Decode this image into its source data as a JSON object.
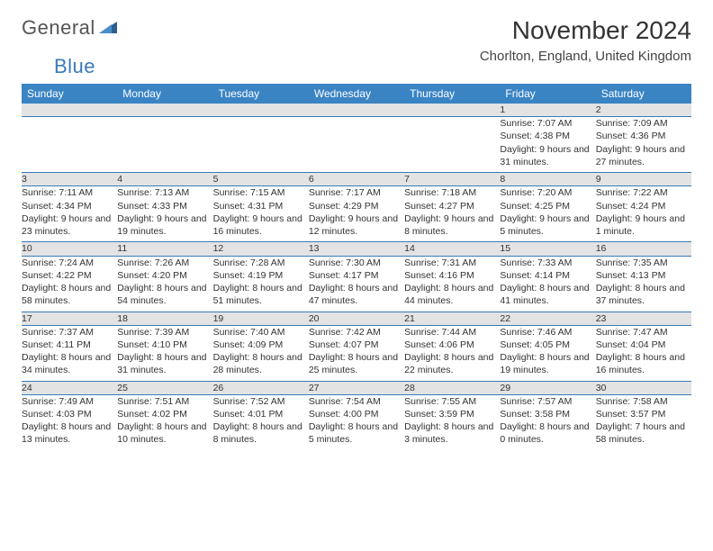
{
  "logo": {
    "text1": "General",
    "text2": "Blue",
    "color1": "#555555",
    "color2": "#3a7ab8"
  },
  "title": "November 2024",
  "location": "Chorlton, England, United Kingdom",
  "header_bg": "#3a84c4",
  "daynum_bg": "#e3e3e3",
  "rule_color": "#3a7ab8",
  "text_color": "#333333",
  "day_headers": [
    "Sunday",
    "Monday",
    "Tuesday",
    "Wednesday",
    "Thursday",
    "Friday",
    "Saturday"
  ],
  "weeks": [
    [
      null,
      null,
      null,
      null,
      null,
      {
        "n": "1",
        "sr": "7:07 AM",
        "ss": "4:38 PM",
        "dl": "9 hours and 31 minutes."
      },
      {
        "n": "2",
        "sr": "7:09 AM",
        "ss": "4:36 PM",
        "dl": "9 hours and 27 minutes."
      }
    ],
    [
      {
        "n": "3",
        "sr": "7:11 AM",
        "ss": "4:34 PM",
        "dl": "9 hours and 23 minutes."
      },
      {
        "n": "4",
        "sr": "7:13 AM",
        "ss": "4:33 PM",
        "dl": "9 hours and 19 minutes."
      },
      {
        "n": "5",
        "sr": "7:15 AM",
        "ss": "4:31 PM",
        "dl": "9 hours and 16 minutes."
      },
      {
        "n": "6",
        "sr": "7:17 AM",
        "ss": "4:29 PM",
        "dl": "9 hours and 12 minutes."
      },
      {
        "n": "7",
        "sr": "7:18 AM",
        "ss": "4:27 PM",
        "dl": "9 hours and 8 minutes."
      },
      {
        "n": "8",
        "sr": "7:20 AM",
        "ss": "4:25 PM",
        "dl": "9 hours and 5 minutes."
      },
      {
        "n": "9",
        "sr": "7:22 AM",
        "ss": "4:24 PM",
        "dl": "9 hours and 1 minute."
      }
    ],
    [
      {
        "n": "10",
        "sr": "7:24 AM",
        "ss": "4:22 PM",
        "dl": "8 hours and 58 minutes."
      },
      {
        "n": "11",
        "sr": "7:26 AM",
        "ss": "4:20 PM",
        "dl": "8 hours and 54 minutes."
      },
      {
        "n": "12",
        "sr": "7:28 AM",
        "ss": "4:19 PM",
        "dl": "8 hours and 51 minutes."
      },
      {
        "n": "13",
        "sr": "7:30 AM",
        "ss": "4:17 PM",
        "dl": "8 hours and 47 minutes."
      },
      {
        "n": "14",
        "sr": "7:31 AM",
        "ss": "4:16 PM",
        "dl": "8 hours and 44 minutes."
      },
      {
        "n": "15",
        "sr": "7:33 AM",
        "ss": "4:14 PM",
        "dl": "8 hours and 41 minutes."
      },
      {
        "n": "16",
        "sr": "7:35 AM",
        "ss": "4:13 PM",
        "dl": "8 hours and 37 minutes."
      }
    ],
    [
      {
        "n": "17",
        "sr": "7:37 AM",
        "ss": "4:11 PM",
        "dl": "8 hours and 34 minutes."
      },
      {
        "n": "18",
        "sr": "7:39 AM",
        "ss": "4:10 PM",
        "dl": "8 hours and 31 minutes."
      },
      {
        "n": "19",
        "sr": "7:40 AM",
        "ss": "4:09 PM",
        "dl": "8 hours and 28 minutes."
      },
      {
        "n": "20",
        "sr": "7:42 AM",
        "ss": "4:07 PM",
        "dl": "8 hours and 25 minutes."
      },
      {
        "n": "21",
        "sr": "7:44 AM",
        "ss": "4:06 PM",
        "dl": "8 hours and 22 minutes."
      },
      {
        "n": "22",
        "sr": "7:46 AM",
        "ss": "4:05 PM",
        "dl": "8 hours and 19 minutes."
      },
      {
        "n": "23",
        "sr": "7:47 AM",
        "ss": "4:04 PM",
        "dl": "8 hours and 16 minutes."
      }
    ],
    [
      {
        "n": "24",
        "sr": "7:49 AM",
        "ss": "4:03 PM",
        "dl": "8 hours and 13 minutes."
      },
      {
        "n": "25",
        "sr": "7:51 AM",
        "ss": "4:02 PM",
        "dl": "8 hours and 10 minutes."
      },
      {
        "n": "26",
        "sr": "7:52 AM",
        "ss": "4:01 PM",
        "dl": "8 hours and 8 minutes."
      },
      {
        "n": "27",
        "sr": "7:54 AM",
        "ss": "4:00 PM",
        "dl": "8 hours and 5 minutes."
      },
      {
        "n": "28",
        "sr": "7:55 AM",
        "ss": "3:59 PM",
        "dl": "8 hours and 3 minutes."
      },
      {
        "n": "29",
        "sr": "7:57 AM",
        "ss": "3:58 PM",
        "dl": "8 hours and 0 minutes."
      },
      {
        "n": "30",
        "sr": "7:58 AM",
        "ss": "3:57 PM",
        "dl": "7 hours and 58 minutes."
      }
    ]
  ],
  "labels": {
    "sunrise": "Sunrise:",
    "sunset": "Sunset:",
    "daylight": "Daylight:"
  }
}
